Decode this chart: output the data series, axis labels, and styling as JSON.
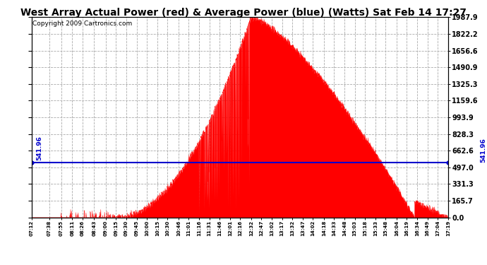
{
  "title": "West Array Actual Power (red) & Average Power (blue) (Watts) Sat Feb 14 17:27",
  "copyright": "Copyright 2009 Cartronics.com",
  "average_power": 541.96,
  "y_max": 1987.9,
  "y_min": 0.0,
  "y_ticks": [
    0.0,
    165.7,
    331.3,
    497.0,
    662.6,
    828.3,
    993.9,
    1159.6,
    1325.3,
    1490.9,
    1656.6,
    1822.2,
    1987.9
  ],
  "background_color": "#ffffff",
  "plot_bg_color": "#ffffff",
  "grid_color": "#aaaaaa",
  "area_color": "#ff0000",
  "line_color": "#0000cc",
  "title_fontsize": 10,
  "copyright_fontsize": 6.5,
  "tick_times_str": [
    "07:12",
    "07:38",
    "07:55",
    "08:11",
    "08:26",
    "08:43",
    "09:00",
    "09:15",
    "09:30",
    "09:45",
    "10:00",
    "10:15",
    "10:30",
    "10:46",
    "11:01",
    "11:16",
    "11:31",
    "11:46",
    "12:01",
    "12:16",
    "12:32",
    "12:47",
    "13:02",
    "13:17",
    "13:32",
    "13:47",
    "14:02",
    "14:18",
    "14:33",
    "14:48",
    "15:03",
    "15:18",
    "15:33",
    "15:48",
    "16:04",
    "16:19",
    "16:34",
    "16:49",
    "17:04",
    "17:19"
  ]
}
